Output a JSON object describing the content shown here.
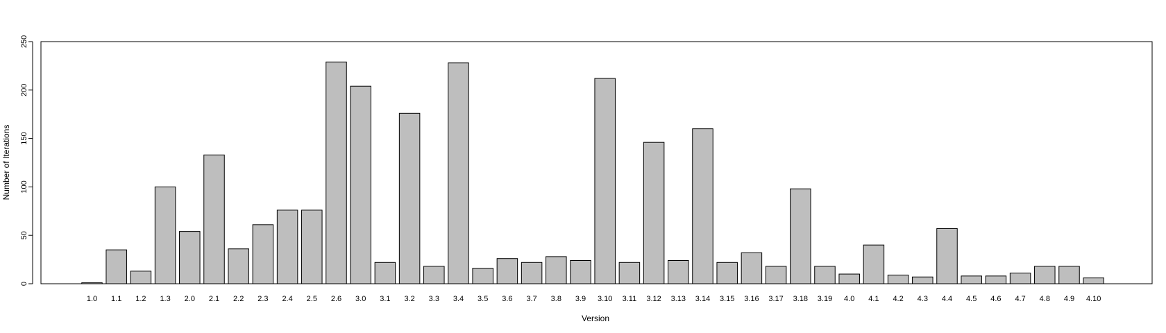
{
  "chart_data": {
    "type": "bar",
    "title": "",
    "xlabel": "Version",
    "ylabel": "Number of Iterations",
    "ylim": [
      0,
      250
    ],
    "yticks": [
      0,
      50,
      100,
      150,
      200,
      250
    ],
    "grid": false,
    "legend": "none",
    "bar_color": "#bebebe",
    "bar_stroke": "#000000",
    "categories": [
      "1.0",
      "1.1",
      "1.2",
      "1.3",
      "2.0",
      "2.1",
      "2.2",
      "2.3",
      "2.4",
      "2.5",
      "2.6",
      "3.0",
      "3.1",
      "3.2",
      "3.3",
      "3.4",
      "3.5",
      "3.6",
      "3.7",
      "3.8",
      "3.9",
      "3.10",
      "3.11",
      "3.12",
      "3.13",
      "3.14",
      "3.15",
      "3.16",
      "3.17",
      "3.18",
      "3.19",
      "4.0",
      "4.1",
      "4.2",
      "4.3",
      "4.4",
      "4.5",
      "4.6",
      "4.7",
      "4.8",
      "4.9",
      "4.10"
    ],
    "values": [
      1,
      35,
      13,
      100,
      54,
      133,
      36,
      61,
      76,
      76,
      229,
      204,
      22,
      176,
      18,
      228,
      16,
      26,
      22,
      28,
      24,
      212,
      22,
      146,
      24,
      160,
      22,
      32,
      18,
      98,
      18,
      10,
      40,
      9,
      7,
      57,
      8,
      8,
      11,
      18,
      18,
      6
    ]
  }
}
